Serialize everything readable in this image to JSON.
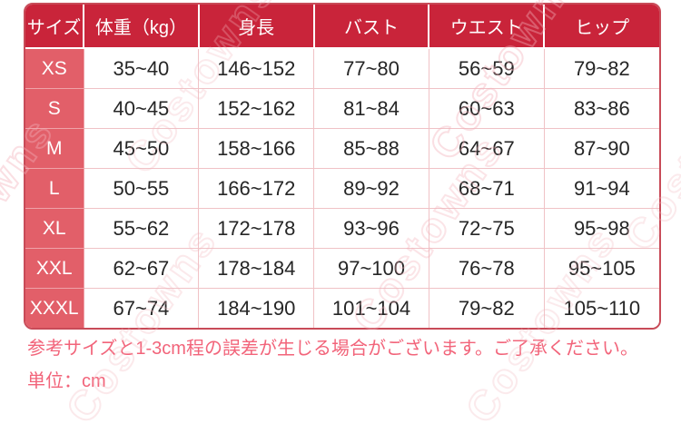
{
  "watermark": {
    "text": "Costowns"
  },
  "table": {
    "headers": [
      "サイズ",
      "体重（kg）",
      "身長",
      "バスト",
      "ウエスト",
      "ヒップ"
    ],
    "rows": [
      [
        "XS",
        "35~40",
        "146~152",
        "77~80",
        "56~59",
        "79~82"
      ],
      [
        "S",
        "40~45",
        "152~162",
        "81~84",
        "60~63",
        "83~86"
      ],
      [
        "M",
        "45~50",
        "158~166",
        "85~88",
        "64~67",
        "87~90"
      ],
      [
        "L",
        "50~55",
        "166~172",
        "89~92",
        "68~71",
        "91~94"
      ],
      [
        "XL",
        "55~62",
        "172~178",
        "93~96",
        "72~75",
        "95~98"
      ],
      [
        "XXL",
        "62~67",
        "178~184",
        "97~100",
        "76~78",
        "95~105"
      ],
      [
        "XXXL",
        "67~74",
        "184~190",
        "101~104",
        "79~82",
        "105~110"
      ]
    ]
  },
  "notes": {
    "line1": "参考サイズと1-3cm程の誤差が生じる場合がございます。ご了承ください。",
    "line2": "単位：cm"
  },
  "colors": {
    "header_bg": "#c9243a",
    "size_column_bg": "#e25f69",
    "outer_border": "#c84b58",
    "cell_border": "#f0c2c6",
    "note_text": "#f2647a",
    "watermark": "#f3b0b8"
  }
}
